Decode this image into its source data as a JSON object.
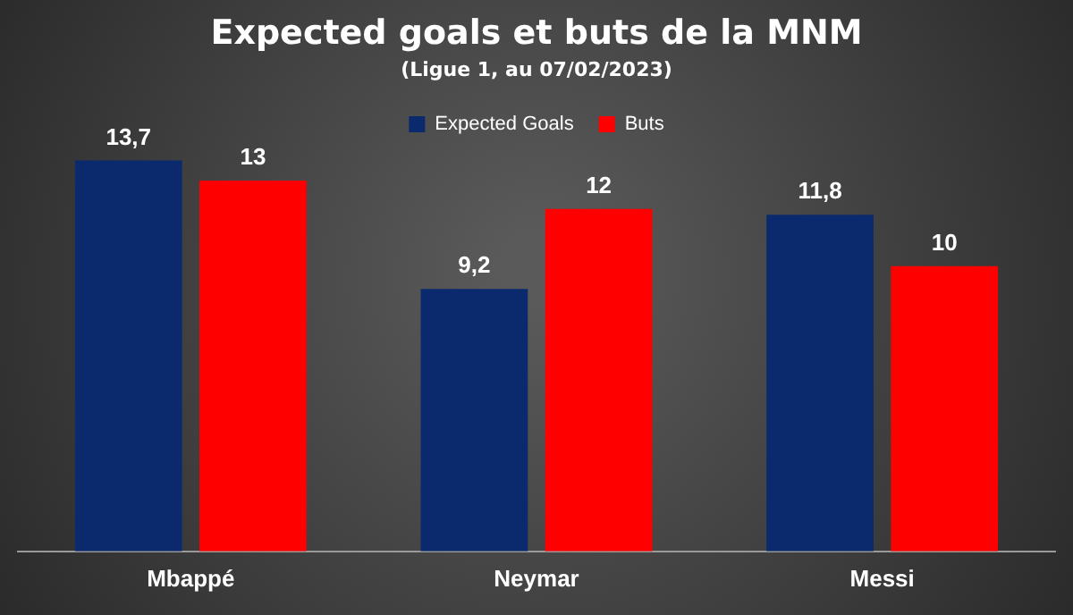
{
  "chart_data": {
    "type": "bar",
    "title": "Expected goals et buts de la MNM",
    "subtitle": "(Ligue 1, au 07/02/2023)",
    "categories": [
      "Mbappé",
      "Neymar",
      "Messi"
    ],
    "series": [
      {
        "name": "Expected Goals",
        "color": "#0b2a6e",
        "values": [
          13.7,
          9.2,
          11.8
        ],
        "value_labels": [
          "13,7",
          "9,2",
          "11,8"
        ]
      },
      {
        "name": "Buts",
        "color": "#ff0000",
        "values": [
          13,
          12,
          10
        ],
        "value_labels": [
          "13",
          "12",
          "10"
        ]
      }
    ],
    "legend": "top",
    "grid": false,
    "tick_labels": "x"
  }
}
